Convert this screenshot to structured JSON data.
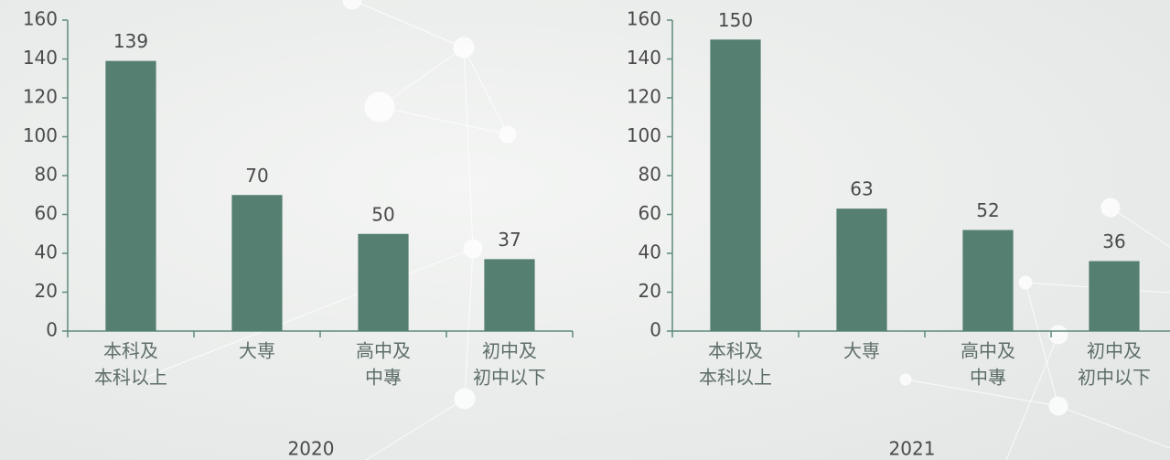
{
  "chart_data": [
    {
      "type": "bar",
      "title": "2020",
      "categories": [
        [
          "本科及",
          "本科以上"
        ],
        [
          "大専"
        ],
        [
          "高中及",
          "中專"
        ],
        [
          "初中及",
          "初中以下"
        ]
      ],
      "values": [
        139,
        70,
        50,
        37
      ],
      "color": "#557f70",
      "ylim": [
        0,
        160
      ],
      "yticks": [
        0,
        20,
        40,
        60,
        80,
        100,
        120,
        140,
        160
      ]
    },
    {
      "type": "bar",
      "title": "2021",
      "categories": [
        [
          "本科及",
          "本科以上"
        ],
        [
          "大専"
        ],
        [
          "高中及",
          "中專"
        ],
        [
          "初中及",
          "初中以下"
        ]
      ],
      "values": [
        150,
        63,
        52,
        36
      ],
      "color": "#557f70",
      "ylim": [
        0,
        160
      ],
      "yticks": [
        0,
        20,
        40,
        60,
        80,
        100,
        120,
        140,
        160
      ]
    }
  ]
}
